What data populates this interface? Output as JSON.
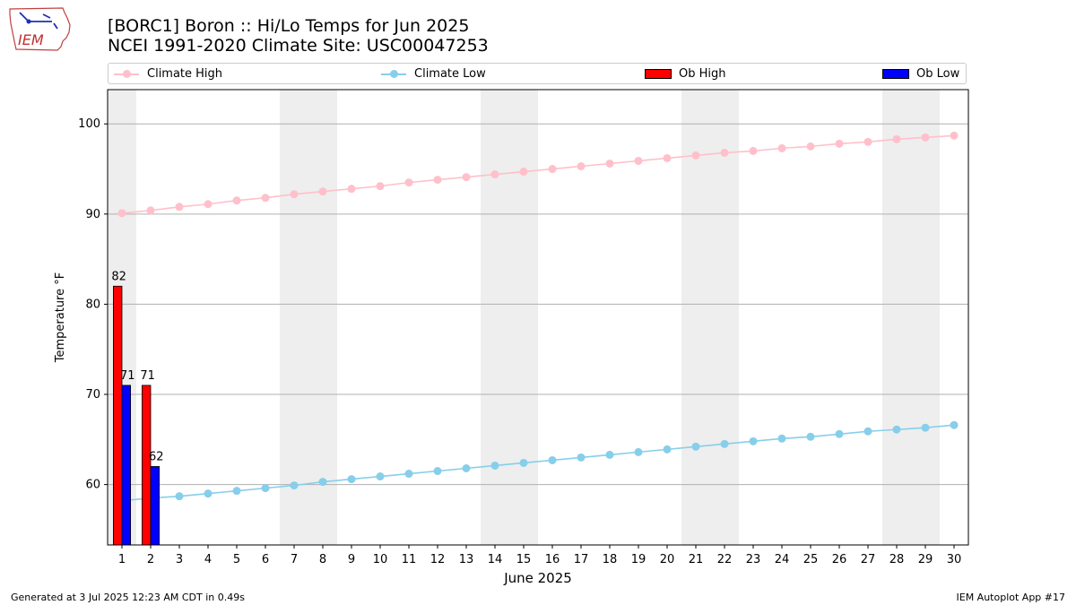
{
  "header": {
    "title_line1": "[BORC1] Boron :: Hi/Lo Temps for Jun 2025",
    "title_line2": "NCEI 1991-2020 Climate Site: USC00047253",
    "logo_text": "IEM"
  },
  "legend": {
    "items": [
      {
        "label": "Climate High",
        "color": "#ffc0cb",
        "kind": "line"
      },
      {
        "label": "Climate Low",
        "color": "#87ceeb",
        "kind": "line"
      },
      {
        "label": "Ob High",
        "color": "#ff0000",
        "kind": "box"
      },
      {
        "label": "Ob Low",
        "color": "#0000ff",
        "kind": "box"
      }
    ]
  },
  "footer": {
    "left": "Generated at 3 Jul 2025 12:23 AM CDT in 0.49s",
    "right": "IEM Autoplot App #17"
  },
  "chart_data": {
    "type": "bar",
    "xlabel": "June 2025",
    "ylabel": "Temperature °F",
    "xlim": [
      0.5,
      30.5
    ],
    "ylim": [
      53.3,
      103.8
    ],
    "yticks": [
      60,
      70,
      80,
      90,
      100
    ],
    "grid": "horizontal",
    "legend_position": "top",
    "days": [
      1,
      2,
      3,
      4,
      5,
      6,
      7,
      8,
      9,
      10,
      11,
      12,
      13,
      14,
      15,
      16,
      17,
      18,
      19,
      20,
      21,
      22,
      23,
      24,
      25,
      26,
      27,
      28,
      29,
      30
    ],
    "weekend_bands": [
      [
        0.5,
        1.5
      ],
      [
        6.5,
        8.5
      ],
      [
        13.5,
        15.5
      ],
      [
        20.5,
        22.5
      ],
      [
        27.5,
        29.5
      ]
    ],
    "series": [
      {
        "name": "Climate High",
        "type": "line",
        "color": "#ffc0cb",
        "values": [
          90.1,
          90.4,
          90.8,
          91.1,
          91.5,
          91.8,
          92.2,
          92.5,
          92.8,
          93.1,
          93.5,
          93.8,
          94.1,
          94.4,
          94.7,
          95.0,
          95.3,
          95.6,
          95.9,
          96.2,
          96.5,
          96.8,
          97.0,
          97.3,
          97.5,
          97.8,
          98.0,
          98.3,
          98.5,
          98.7
        ]
      },
      {
        "name": "Climate Low",
        "type": "line",
        "color": "#87ceeb",
        "values": [
          58.2,
          58.5,
          58.7,
          59.0,
          59.3,
          59.6,
          59.9,
          60.3,
          60.6,
          60.9,
          61.2,
          61.5,
          61.8,
          62.1,
          62.4,
          62.7,
          63.0,
          63.3,
          63.6,
          63.9,
          64.2,
          64.5,
          64.8,
          65.1,
          65.3,
          65.6,
          65.9,
          66.1,
          66.3,
          66.6
        ]
      },
      {
        "name": "Ob High",
        "type": "bar",
        "color": "#ff0000",
        "x": [
          1,
          2
        ],
        "values": [
          82,
          71
        ],
        "labels": [
          "82",
          "71"
        ]
      },
      {
        "name": "Ob Low",
        "type": "bar",
        "color": "#0000ff",
        "x": [
          1,
          2
        ],
        "values": [
          71,
          62
        ],
        "labels": [
          "71",
          "62"
        ]
      }
    ]
  }
}
